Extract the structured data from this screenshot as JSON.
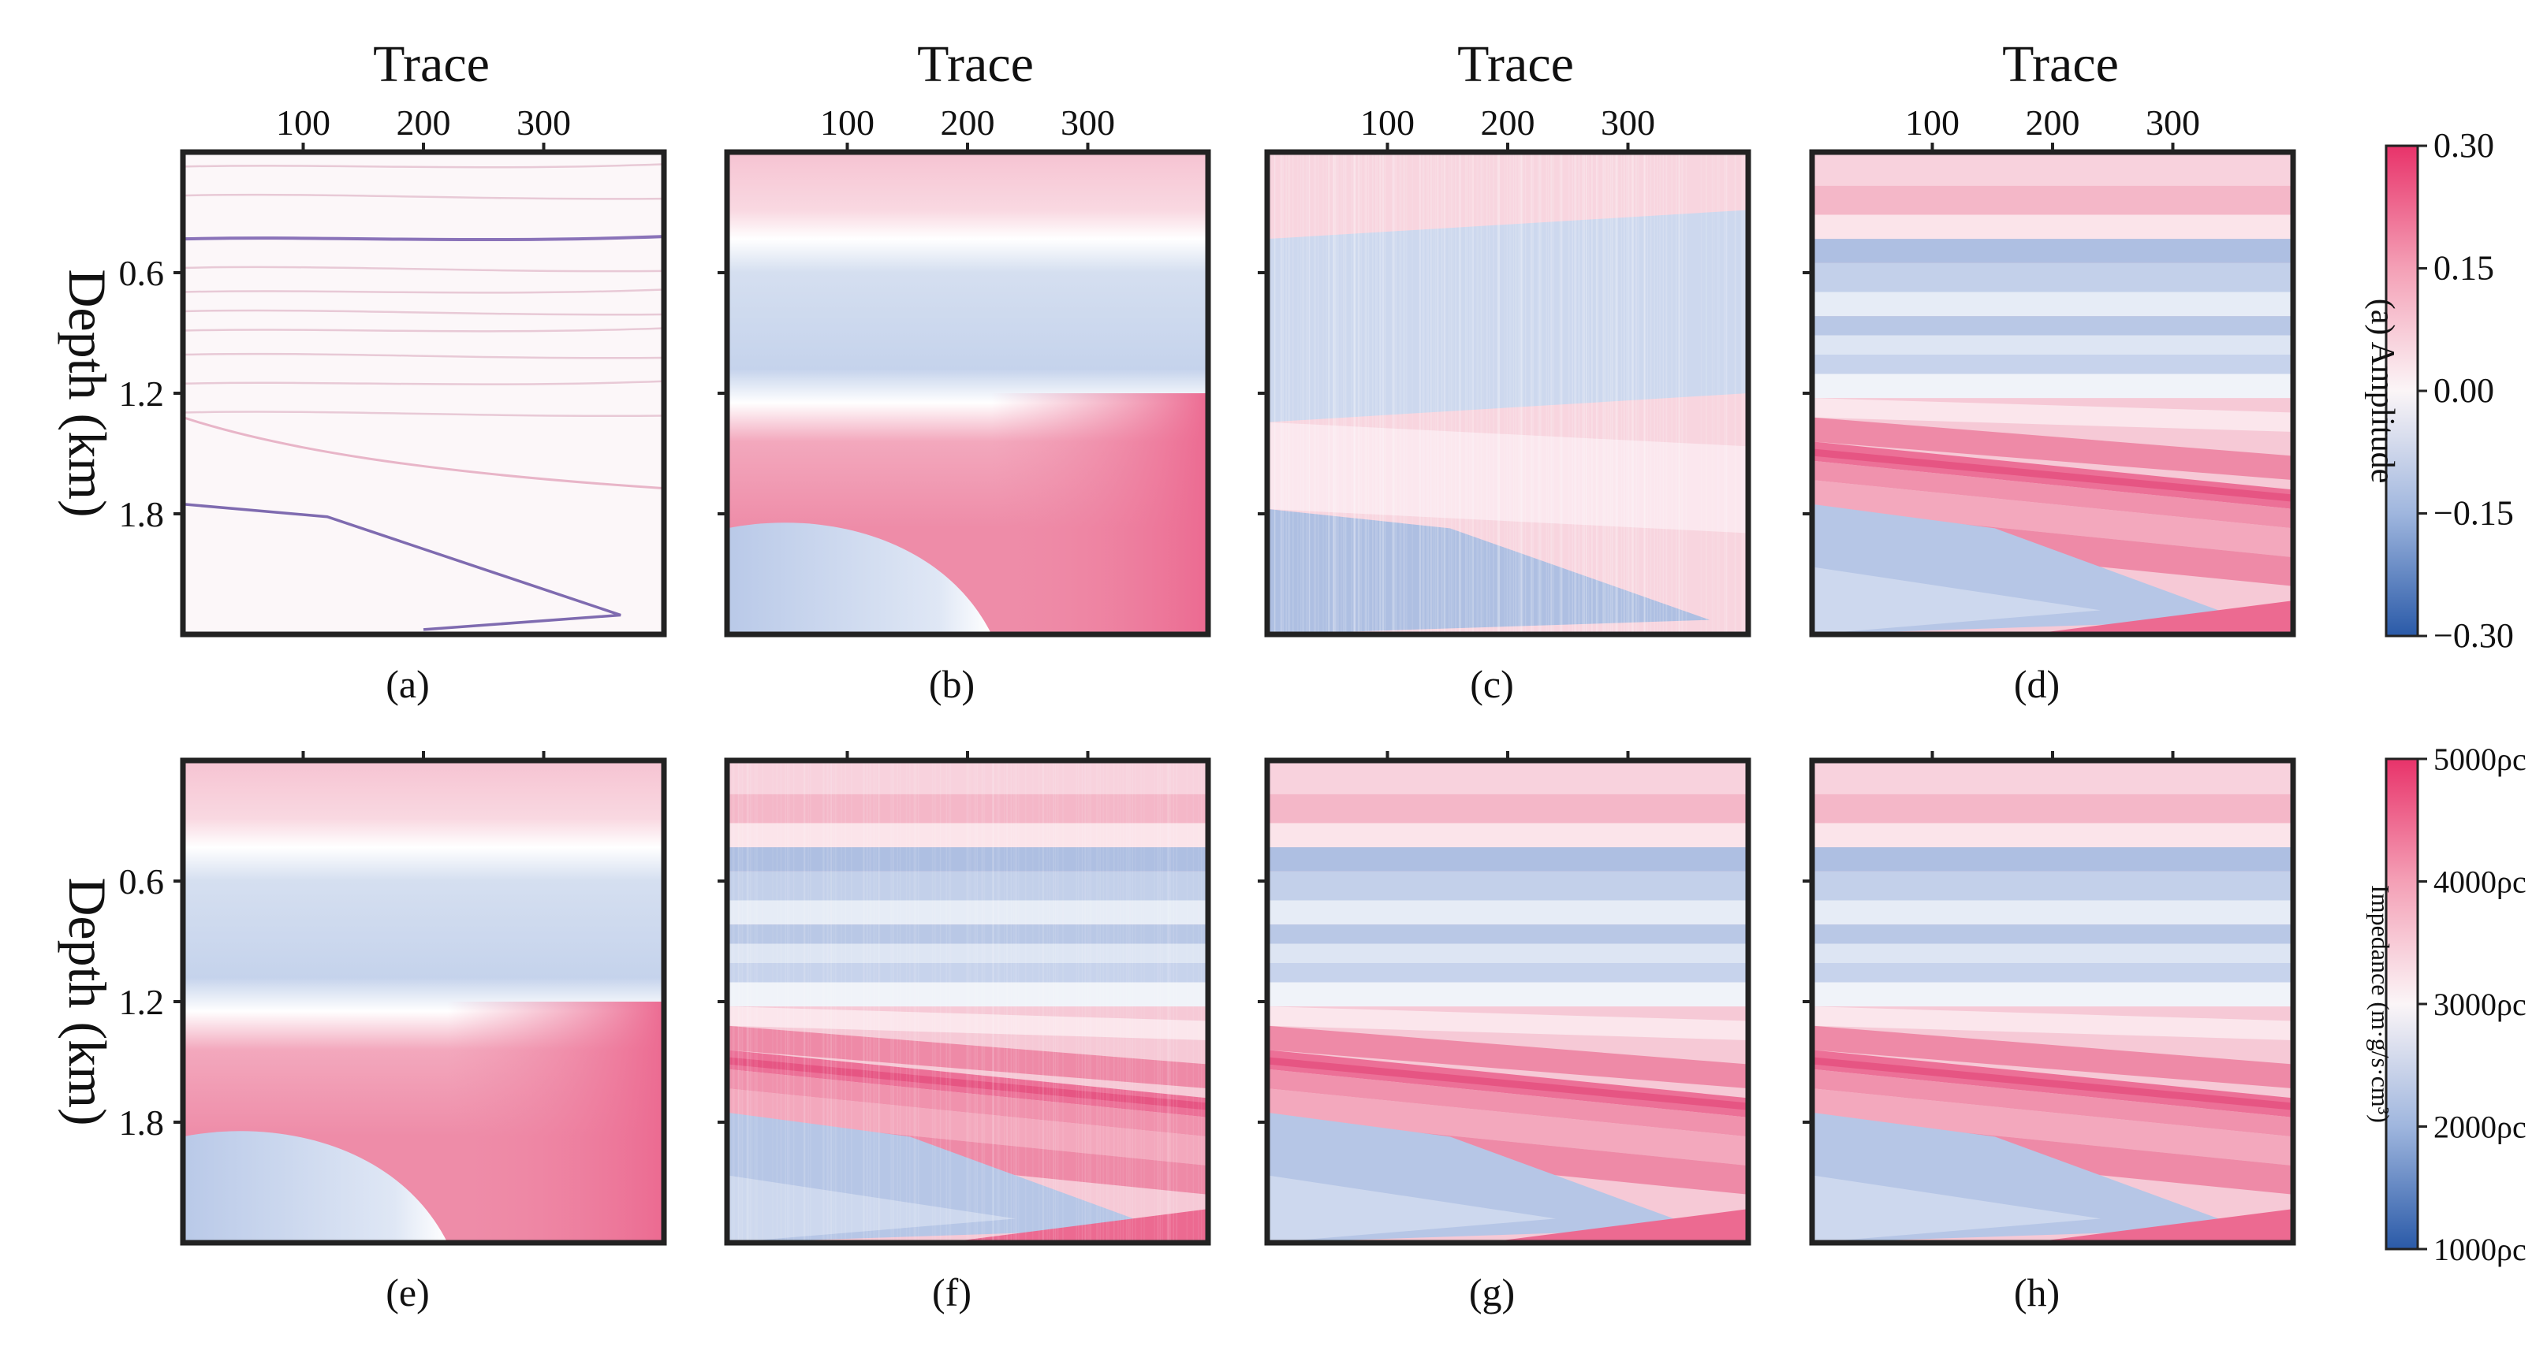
{
  "chart_data": {
    "type": "heatmap",
    "x_axis": {
      "title": "Trace",
      "ticks": [
        "100",
        "200",
        "300"
      ],
      "tick_values": [
        100,
        200,
        300
      ],
      "range": [
        0,
        400
      ]
    },
    "y_axis": {
      "title": "Depth (km)",
      "ticks": [
        "0.6",
        "1.2",
        "1.8"
      ],
      "tick_values": [
        0.6,
        1.2,
        1.8
      ],
      "range": [
        0.0,
        2.4
      ]
    },
    "panels": [
      {
        "label": "(a)",
        "row": 1,
        "style": "reflectivity"
      },
      {
        "label": "(b)",
        "row": 1,
        "style": "smooth"
      },
      {
        "label": "(c)",
        "row": 1,
        "style": "noisy"
      },
      {
        "label": "(d)",
        "row": 1,
        "style": "layered"
      },
      {
        "label": "(e)",
        "row": 2,
        "style": "smooth"
      },
      {
        "label": "(f)",
        "row": 2,
        "style": "noisy-layered"
      },
      {
        "label": "(g)",
        "row": 2,
        "style": "layered"
      },
      {
        "label": "(h)",
        "row": 2,
        "style": "layered"
      }
    ],
    "colorbars": [
      {
        "title": "(a) Amplitude",
        "ticks": [
          "0.30",
          "0.15",
          "0.00",
          "−0.15",
          "−0.30"
        ],
        "tick_values": [
          0.3,
          0.15,
          0.0,
          -0.15,
          -0.3
        ],
        "range": [
          -0.3,
          0.3
        ]
      },
      {
        "title": "Impedance (m·g/s·cm³)",
        "ticks": [
          "5000ρc",
          "4000ρc",
          "3000ρc",
          "2000ρc",
          "1000ρc"
        ],
        "tick_values": [
          5000,
          4000,
          3000,
          2000,
          1000
        ],
        "range": [
          1000,
          5000
        ]
      }
    ],
    "colors": {
      "high": "#e8336a",
      "mid": "#ffffff",
      "low": "#2a5aa8",
      "frame": "#222222"
    }
  }
}
